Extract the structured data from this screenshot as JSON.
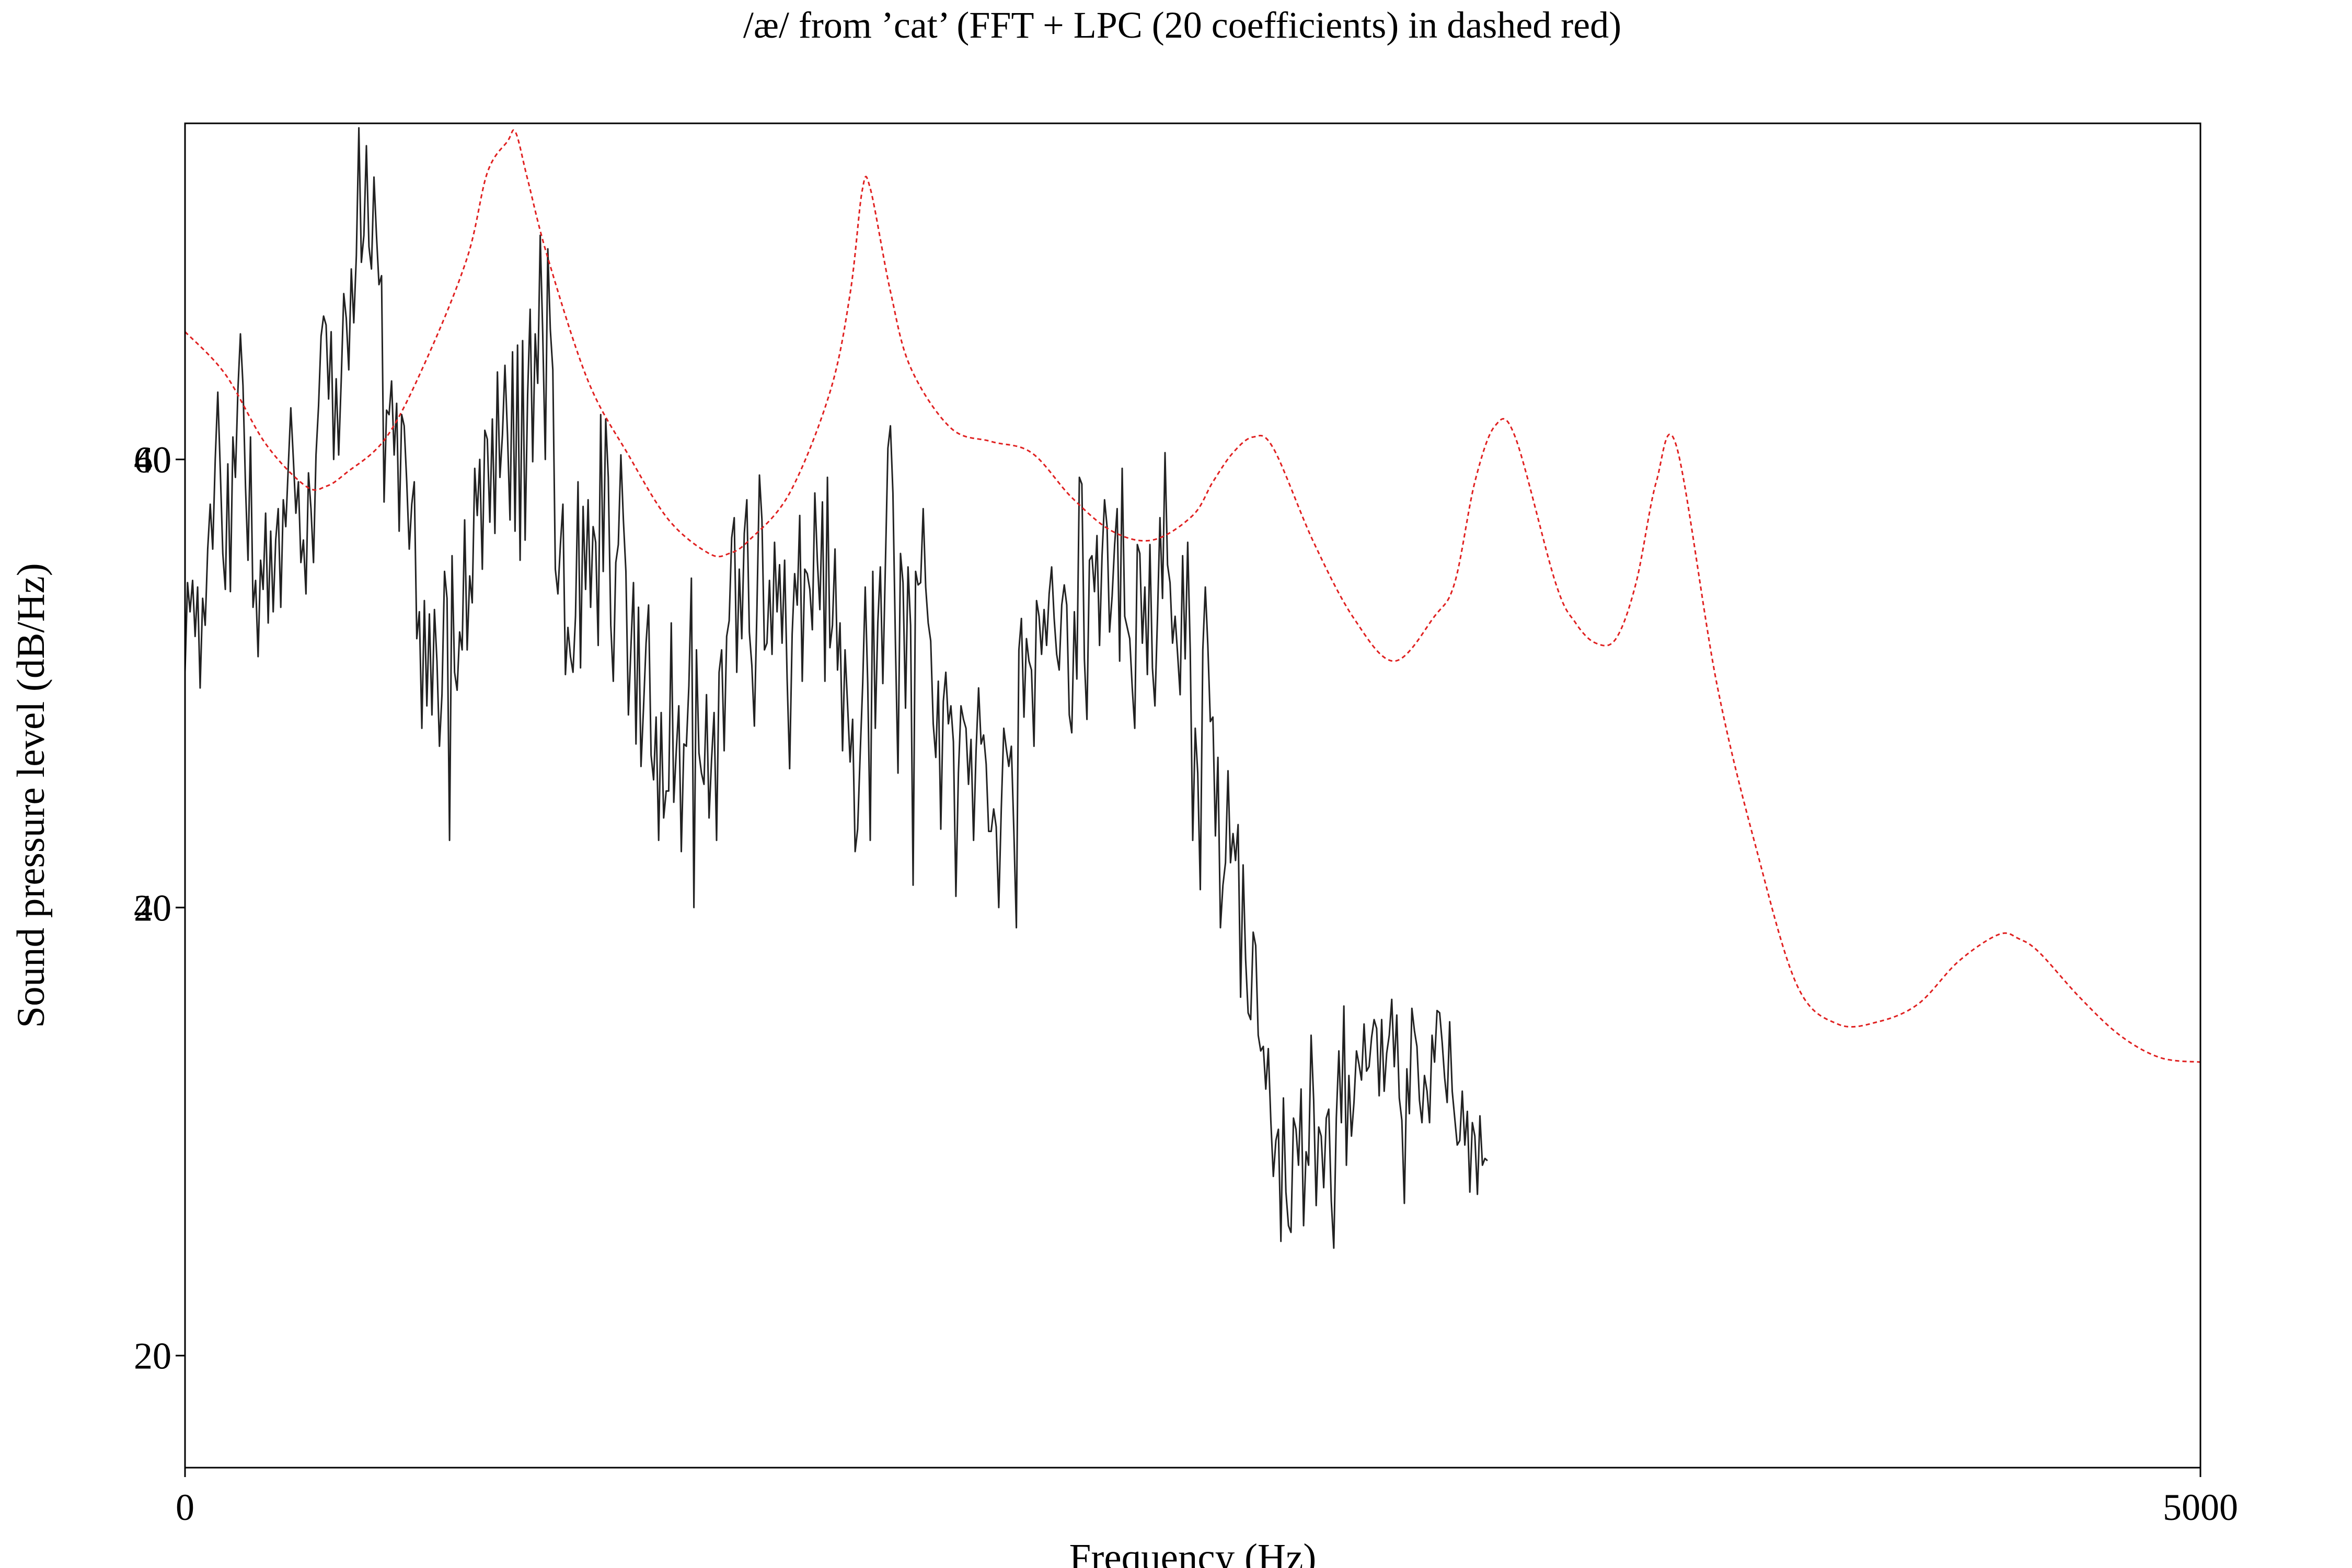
{
  "chart_data": {
    "type": "line",
    "title": "/æ/ from ’cat’ (FFT + LPC (20 coefficients) in dashed red)",
    "xlabel": "Frequency (Hz)",
    "ylabel": "Sound pressure level (dB/Hz)",
    "xlim": [
      0,
      5000
    ],
    "ylim": [
      15,
      75
    ],
    "y2lim": [
      -5,
      55
    ],
    "x_ticks": [
      "0",
      "5000"
    ],
    "y_ticks": [
      {
        "value": 60,
        "label": "60"
      },
      {
        "value": 40,
        "label": "40"
      },
      {
        "value": 20,
        "label": "20"
      }
    ],
    "y2_ticks": [
      {
        "value": 40,
        "label": "40"
      },
      {
        "value": 20,
        "label": "20"
      },
      {
        "value": 0,
        "label": "0"
      }
    ],
    "grid": false,
    "legend": "none",
    "series": [
      {
        "color": "#222222",
        "style": "solid",
        "x_step": 6.25,
        "values": [
          50.5,
          54.5,
          53.2,
          54.6,
          52.1,
          54.3,
          49.8,
          53.8,
          52.6,
          56.0,
          58.0,
          56.0,
          60.0,
          63.0,
          59.5,
          55.8,
          54.2,
          59.8,
          54.1,
          61.0,
          59.2,
          63.1,
          65.6,
          63.3,
          58.8,
          55.5,
          61.0,
          53.4,
          54.6,
          51.2,
          55.5,
          54.2,
          57.6,
          52.7,
          56.8,
          53.2,
          56.4,
          57.8,
          53.4,
          58.2,
          57.0,
          59.7,
          62.3,
          60.0,
          57.6,
          59.0,
          55.4,
          56.4,
          54.0,
          59.4,
          57.8,
          55.4,
          60.2,
          62.4,
          65.5,
          66.4,
          66.0,
          62.7,
          65.7,
          60.0,
          63.6,
          60.2,
          63.5,
          67.4,
          66.3,
          64.0,
          68.5,
          66.1,
          69.1,
          74.8,
          68.8,
          70.0,
          74.0,
          69.5,
          68.5,
          72.6,
          70.0,
          67.8,
          68.2,
          58.1,
          62.2,
          62.0,
          63.5,
          60.2,
          62.5,
          56.8,
          62.0,
          61.5,
          59.0,
          56.0,
          58.0,
          59.0,
          52.0,
          53.2,
          48.0,
          53.7,
          49.0,
          53.1,
          48.6,
          53.3,
          51.0,
          47.2,
          49.5,
          55.0,
          53.8,
          43.0,
          55.7,
          50.5,
          49.7,
          52.3,
          51.5,
          57.3,
          51.5,
          54.8,
          53.6,
          59.6,
          57.5,
          60.0,
          55.1,
          61.3,
          60.9,
          57.2,
          61.8,
          56.7,
          63.9,
          59.2,
          61.1,
          64.2,
          61.1,
          57.3,
          64.8,
          56.8,
          65.1,
          55.5,
          65.3,
          56.4,
          62.9,
          66.7,
          59.9,
          65.6,
          63.4,
          70.0,
          65.6,
          60.0,
          69.4,
          65.8,
          64.0,
          55.1,
          54.0,
          56.2,
          58.0,
          50.4,
          52.5,
          51.2,
          50.5,
          53.0,
          59.0,
          50.7,
          57.9,
          54.2,
          58.2,
          53.4,
          57.0,
          56.3,
          51.7,
          62.0,
          55.0,
          61.8,
          59.2,
          52.6,
          50.1,
          55.4,
          56.2,
          60.2,
          57.3,
          55.0,
          48.6,
          51.6,
          54.5,
          47.3,
          53.4,
          46.3,
          48.9,
          51.8,
          53.5,
          46.8,
          45.7,
          48.5,
          43.0,
          48.7,
          44.0,
          45.2,
          45.2,
          52.7,
          44.7,
          47.0,
          49.0,
          42.5,
          47.3,
          47.2,
          49.9,
          54.7,
          40.0,
          51.5,
          46.9,
          46.0,
          45.5,
          49.5,
          44.0,
          46.6,
          48.7,
          43.0,
          50.5,
          51.5,
          47.0,
          52.1,
          52.8,
          56.5,
          57.4,
          50.5,
          55.1,
          52.0,
          56.7,
          58.2,
          52.3,
          50.8,
          48.1,
          53.2,
          59.3,
          57.3,
          51.5,
          51.8,
          54.6,
          51.3,
          56.3,
          53.2,
          55.3,
          51.8,
          55.5,
          50.2,
          46.2,
          52.2,
          54.9,
          53.5,
          57.5,
          50.1,
          55.1,
          54.9,
          54.2,
          52.4,
          58.5,
          55.5,
          53.3,
          58.1,
          50.1,
          59.2,
          51.6,
          52.6,
          56.0,
          50.6,
          52.7,
          47.0,
          51.5,
          49.0,
          46.5,
          48.4,
          42.5,
          43.5,
          46.9,
          50.0,
          54.3,
          50.0,
          43.0,
          55.0,
          48.0,
          52.7,
          55.2,
          50.0,
          55.3,
          60.5,
          61.5,
          58.5,
          51.8,
          46.0,
          55.8,
          54.5,
          48.9,
          55.2,
          52.6,
          41.0,
          55.0,
          54.4,
          54.5,
          57.8,
          54.3,
          52.7,
          51.9,
          48.2,
          46.7,
          50.1,
          43.5,
          49.2,
          50.5,
          48.2,
          49.0,
          47.4,
          40.5,
          46.0,
          49.0,
          48.4,
          48.0,
          45.5,
          47.5,
          43.0,
          47.0,
          49.8,
          47.3,
          47.7,
          46.4,
          43.4,
          43.4,
          44.4,
          43.6,
          40.0,
          44.4,
          48.0,
          47.1,
          46.3,
          47.2,
          43.4,
          39.1,
          51.5,
          52.9,
          48.5,
          52.0,
          51.0,
          50.6,
          47.2,
          53.7,
          53.0,
          51.3,
          53.3,
          51.7,
          54.0,
          55.2,
          52.9,
          51.3,
          50.6,
          53.5,
          54.4,
          53.5,
          48.6,
          47.8,
          53.2,
          50.2,
          59.2,
          58.9,
          51.1,
          48.4,
          55.5,
          55.7,
          54.1,
          56.6,
          51.7,
          55.7,
          58.2,
          57.0,
          52.3,
          53.9,
          56.2,
          57.8,
          51.0,
          59.6,
          53.0,
          52.5,
          52.0,
          49.8,
          48.0,
          56.2,
          55.8,
          51.8,
          54.3,
          50.4,
          56.2,
          50.7,
          49.0,
          52.9,
          57.4,
          53.8,
          60.3,
          55.3,
          54.5,
          51.8,
          53.0,
          51.3,
          49.5,
          55.7,
          51.1,
          56.3,
          51.5,
          43.0,
          48.0,
          46.0,
          40.8,
          51.5,
          54.3,
          51.7,
          48.3,
          48.5,
          43.2,
          46.7,
          39.1,
          41.0,
          42.0,
          46.1,
          42.0,
          43.3,
          42.1,
          43.7,
          36.0,
          41.9,
          37.7,
          35.3,
          35.0,
          38.9,
          38.3,
          34.3,
          33.6,
          33.8,
          31.9,
          33.7,
          30.5,
          28.0,
          29.6,
          30.1,
          25.1,
          31.5,
          27.3,
          25.8,
          25.5,
          30.6,
          30.1,
          28.5,
          31.9,
          25.8,
          29.1,
          28.5,
          34.3,
          31.4,
          26.7,
          30.2,
          29.8,
          27.5,
          30.6,
          31.0,
          26.9,
          24.8,
          30.6,
          33.6,
          30.4,
          35.6,
          28.5,
          32.5,
          29.8,
          31.3,
          33.6,
          33.0,
          32.3,
          34.8,
          32.7,
          32.9,
          34.2,
          35.0,
          34.6,
          31.6,
          35.0,
          31.8,
          33.5,
          34.3,
          35.9,
          32.9,
          35.2,
          31.5,
          30.5,
          26.8,
          32.8,
          30.8,
          35.5,
          34.5,
          33.8,
          31.4,
          30.4,
          32.5,
          31.8,
          30.4,
          34.3,
          33.1,
          35.4,
          35.3,
          34.0,
          32.4,
          31.3,
          34.9,
          31.8,
          30.6,
          29.4,
          29.6,
          31.8,
          29.4,
          30.9,
          27.3,
          30.4,
          29.8,
          27.2,
          30.7,
          28.5,
          28.8,
          28.7
        ]
      },
      {
        "color": "#e02020",
        "style": "dashed",
        "axis": "right",
        "x": [
          0,
          100,
          200,
          300,
          350,
          400,
          500,
          600,
          700,
          750,
          800,
          820,
          850,
          900,
          1000,
          1100,
          1200,
          1300,
          1350,
          1400,
          1500,
          1600,
          1650,
          1680,
          1700,
          1750,
          1800,
          1900,
          2000,
          2100,
          2200,
          2300,
          2400,
          2500,
          2550,
          2600,
          2650,
          2700,
          2800,
          2900,
          3000,
          3100,
          3150,
          3200,
          3250,
          3300,
          3400,
          3450,
          3500,
          3550,
          3600,
          3650,
          3700,
          3800,
          3900,
          4000,
          4100,
          4200,
          4300,
          4400,
          4500,
          4550,
          4600,
          4700,
          4800,
          4900,
          5000
        ],
        "values": [
          45.7,
          43.8,
          40.7,
          38.8,
          38.8,
          39.4,
          41.0,
          44.5,
          49.0,
          52.8,
          54.2,
          54.6,
          52.5,
          49.0,
          43.5,
          40.2,
          37.3,
          35.8,
          35.8,
          36.4,
          38.5,
          43.0,
          47.4,
          52.0,
          52.1,
          47.5,
          44.1,
          41.4,
          40.8,
          40.3,
          38.3,
          36.8,
          36.4,
          37.5,
          39.0,
          40.3,
          41.0,
          40.5,
          36.3,
          32.9,
          31.0,
          33.0,
          34.5,
          39.0,
          41.5,
          41.0,
          34.5,
          32.7,
          31.8,
          32.0,
          34.5,
          39.0,
          40.6,
          30.0,
          22.5,
          16.5,
          14.8,
          14.9,
          15.7,
          17.6,
          18.8,
          18.6,
          18.0,
          16.0,
          14.3,
          13.3,
          13.1
        ]
      }
    ]
  }
}
